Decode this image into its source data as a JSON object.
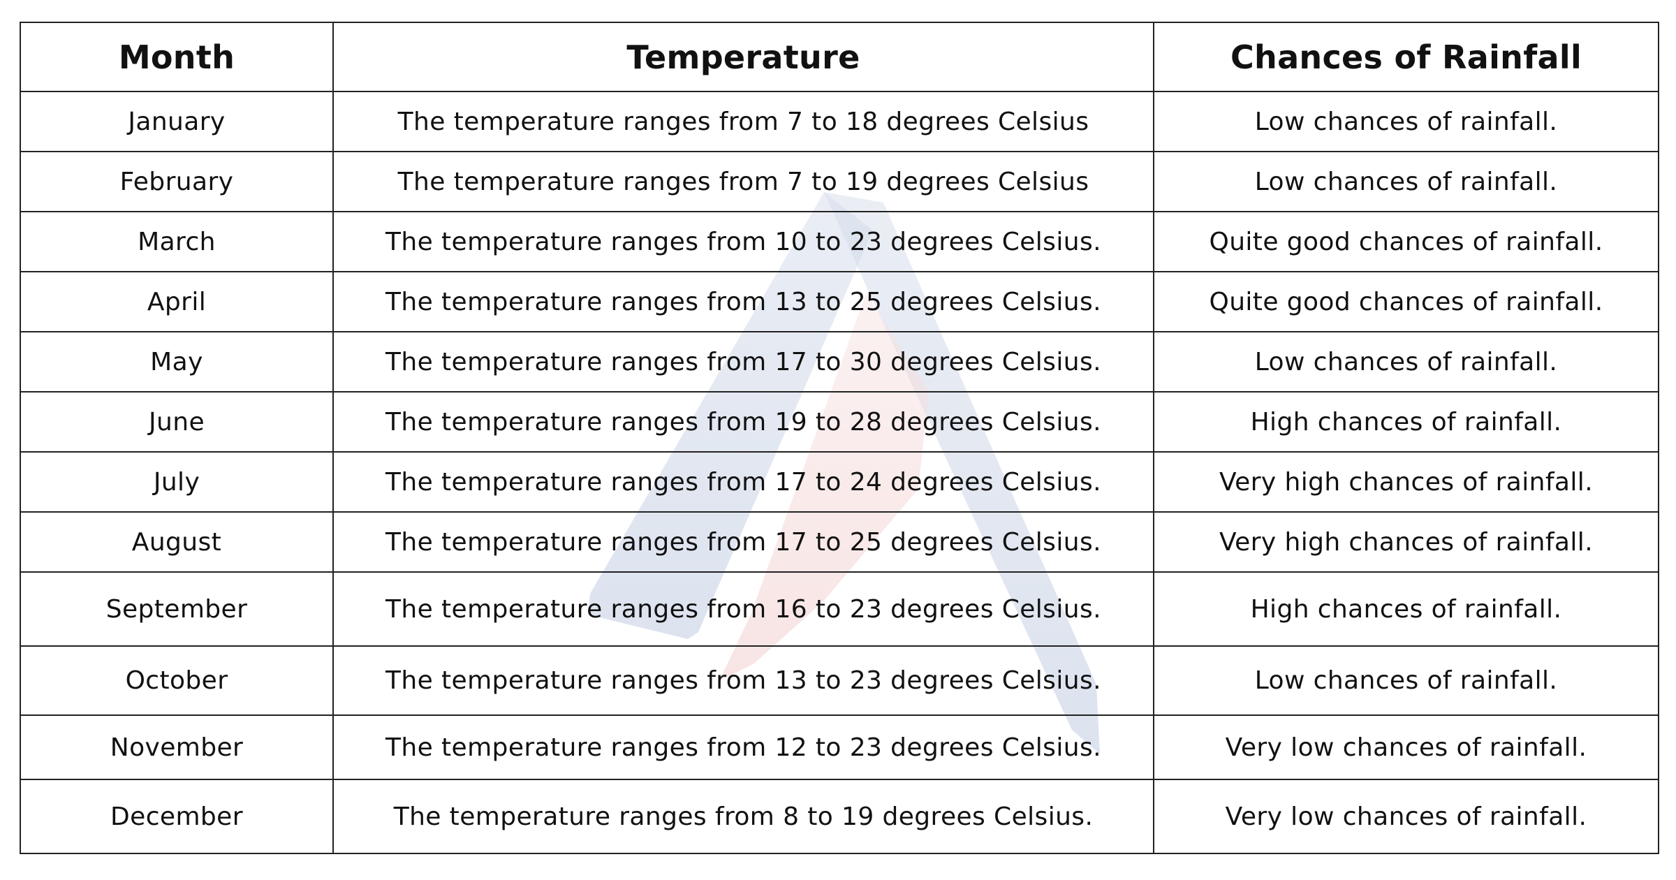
{
  "watermark": {
    "icon": "letter-a-logo-icon",
    "colors": {
      "blue": "#8fa3c8",
      "red": "#e8a0a0"
    }
  },
  "table": {
    "headers": [
      "Month",
      "Temperature",
      "Chances of Rainfall"
    ],
    "rows": [
      {
        "month": "January",
        "temperature": "The temperature ranges from 7 to 18 degrees Celsius",
        "rainfall": "Low chances of rainfall."
      },
      {
        "month": "February",
        "temperature": "The temperature ranges from 7 to 19 degrees Celsius",
        "rainfall": "Low chances of rainfall."
      },
      {
        "month": "March",
        "temperature": "The temperature ranges from 10 to 23 degrees Celsius.",
        "rainfall": "Quite good chances of rainfall."
      },
      {
        "month": "April",
        "temperature": "The temperature ranges from 13 to 25 degrees Celsius.",
        "rainfall": "Quite good chances of rainfall."
      },
      {
        "month": "May",
        "temperature": "The temperature ranges from 17 to 30 degrees Celsius.",
        "rainfall": "Low chances of rainfall."
      },
      {
        "month": "June",
        "temperature": "The temperature ranges from 19 to 28 degrees Celsius.",
        "rainfall": "High chances of rainfall."
      },
      {
        "month": "July",
        "temperature": "The temperature ranges from 17 to 24 degrees Celsius.",
        "rainfall": "Very high chances of rainfall."
      },
      {
        "month": "August",
        "temperature": "The temperature ranges from 17 to 25 degrees Celsius.",
        "rainfall": "Very high chances of rainfall."
      },
      {
        "month": "September",
        "temperature": "The temperature ranges from 16 to 23 degrees Celsius.",
        "rainfall": "High chances of rainfall."
      },
      {
        "month": "October",
        "temperature": "The temperature ranges from 13 to 23 degrees Celsius.",
        "rainfall": "Low chances of rainfall."
      },
      {
        "month": "November",
        "temperature": "The temperature ranges from 12 to 23 degrees Celsius.",
        "rainfall": "Very low chances of rainfall."
      },
      {
        "month": "December",
        "temperature": "The temperature ranges from 8 to 19 degrees Celsius.",
        "rainfall": "Very low chances of rainfall."
      }
    ]
  }
}
